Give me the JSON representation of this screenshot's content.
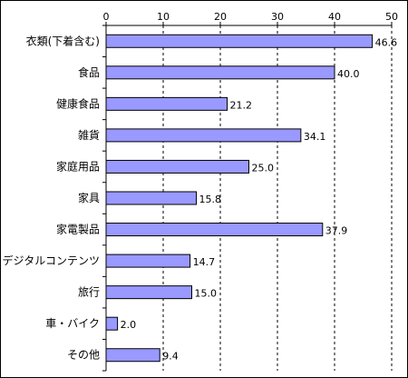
{
  "chart_data": {
    "type": "bar",
    "orientation": "horizontal",
    "title": "",
    "xlabel": "",
    "ylabel": "",
    "categories": [
      "衣類(下着含む)",
      "食品",
      "健康食品",
      "雑貨",
      "家庭用品",
      "家具",
      "家電製品",
      "デジタルコンテンツ",
      "旅行",
      "車・バイク",
      "その他"
    ],
    "values": [
      46.6,
      40.0,
      21.2,
      34.1,
      25.0,
      15.8,
      37.9,
      14.7,
      15.0,
      2.0,
      9.4
    ],
    "data_labels": [
      "46.6",
      "40.0",
      "21.2",
      "34.1",
      "25.0",
      "15.8",
      "37.9",
      "14.7",
      "15.0",
      "2.0",
      "9.4"
    ],
    "xlim": [
      0,
      50
    ],
    "ticks": [
      0,
      10,
      20,
      30,
      40,
      50
    ],
    "tick_labels": [
      "0",
      "10",
      "20",
      "30",
      "40",
      "50"
    ],
    "axis_position": "top",
    "grid": "vertical dashed",
    "legend": "none",
    "colors": {
      "bar_fill": "#9999ff",
      "bar_stroke": "#000000",
      "grid": "#000000"
    }
  }
}
